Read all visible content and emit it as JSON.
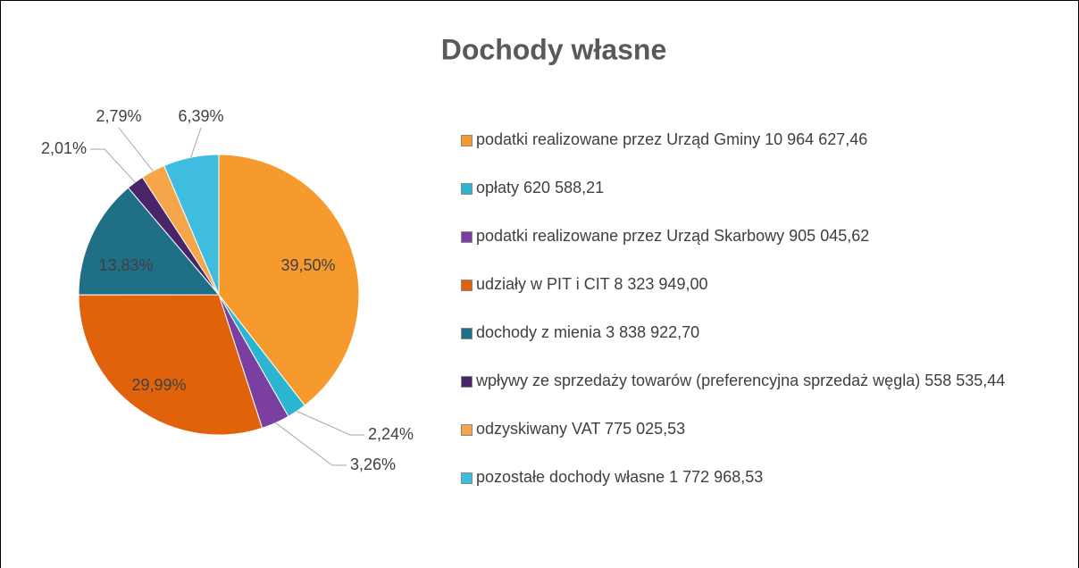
{
  "chart_data": {
    "type": "pie",
    "title": "Dochody własne",
    "categories": [
      "podatki realizowane przez Urząd Gminy 10 964 627,46",
      "opłaty 620 588,21",
      "podatki realizowane przez Urząd Skarbowy 905 045,62",
      "udziały w PIT i CIT 8 323 949,00",
      "dochody z mienia 3 838 922,70",
      "wpływy ze sprzedaży towarów (preferencyjna sprzedaż węgla) 558 535,44",
      "odzyskiwany VAT 775 025,53",
      "pozostałe dochody własne 1 772 968,53"
    ],
    "values": [
      39.5,
      2.24,
      3.26,
      29.99,
      13.83,
      2.01,
      2.79,
      6.39
    ],
    "value_labels": [
      "39,50%",
      "2,24%",
      "3,26%",
      "29,99%",
      "13,83%",
      "2,01%",
      "2,79%",
      "6,39%"
    ],
    "colors": [
      "#f79a2e",
      "#2cb5d0",
      "#7a3fa0",
      "#e0620a",
      "#1f6f86",
      "#4a2468",
      "#f6a54a",
      "#3fbde0"
    ],
    "legend": "right"
  }
}
